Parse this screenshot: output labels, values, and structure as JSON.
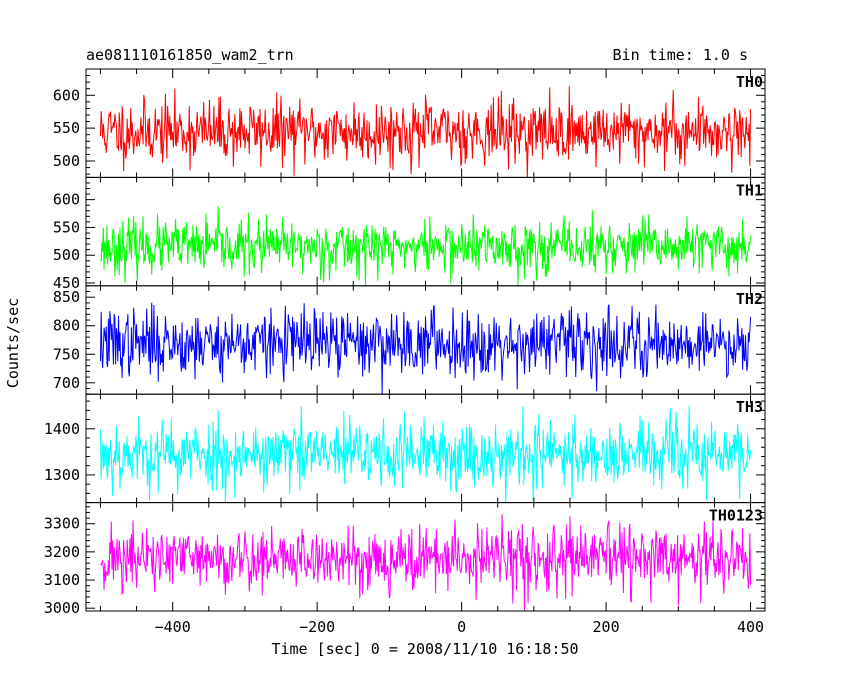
{
  "header": {
    "title": "ae081110161850_wam2_trn",
    "bin_time": "Bin time: 1.0 s"
  },
  "y_axis_label": "Counts/sec",
  "x_axis_label": "Time [sec] 0 = 2008/11/10 16:18:50",
  "chart_data": {
    "type": "line",
    "shared_x": {
      "xlim": [
        -520,
        420
      ],
      "ticks": [
        -400,
        -200,
        0,
        200,
        400
      ],
      "tick_labels": [
        "−400",
        "−200",
        "0",
        "200",
        "400"
      ],
      "data_range": [
        -500,
        400
      ],
      "bin_seconds": 1.0
    },
    "panels": [
      {
        "name": "TH0",
        "color": "#ff0000",
        "ylim": [
          475,
          640
        ],
        "yticks": [
          500,
          550,
          600
        ],
        "ytick_labels": [
          "500",
          "550",
          "600"
        ],
        "mean": 545,
        "noise_sd": 24,
        "seed": 11
      },
      {
        "name": "TH1",
        "color": "#00ff00",
        "ylim": [
          445,
          640
        ],
        "yticks": [
          450,
          500,
          550,
          600
        ],
        "ytick_labels": [
          "450",
          "500",
          "550",
          "600"
        ],
        "mean": 515,
        "noise_sd": 24,
        "seed": 23
      },
      {
        "name": "TH2",
        "color": "#0000ff",
        "ylim": [
          680,
          870
        ],
        "yticks": [
          700,
          750,
          800,
          850
        ],
        "ytick_labels": [
          "700",
          "750",
          "800",
          "850"
        ],
        "mean": 770,
        "noise_sd": 29,
        "seed": 37
      },
      {
        "name": "TH3",
        "color": "#00ffff",
        "ylim": [
          1240,
          1475
        ],
        "yticks": [
          1300,
          1400
        ],
        "ytick_labels": [
          "1300",
          "1400"
        ],
        "mean": 1345,
        "noise_sd": 38,
        "seed": 53
      },
      {
        "name": "TH0123",
        "color": "#ff00ff",
        "ylim": [
          2990,
          3375
        ],
        "yticks": [
          3000,
          3100,
          3200,
          3300
        ],
        "ytick_labels": [
          "3000",
          "3100",
          "3200",
          "3300"
        ],
        "mean": 3175,
        "noise_sd": 58,
        "seed": 71
      }
    ]
  }
}
